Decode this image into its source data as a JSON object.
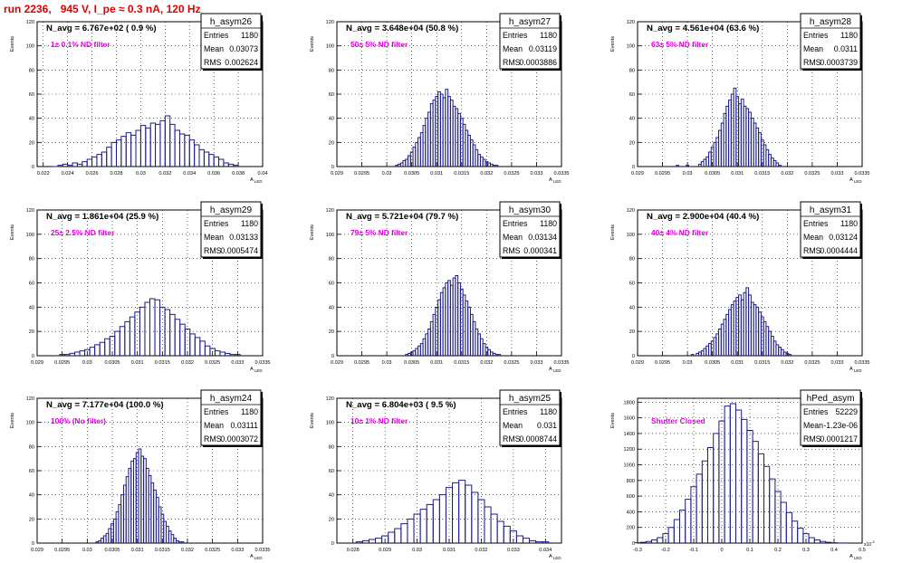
{
  "header": {
    "run_title": "run 2236,   945 V, I_pe ≈ 0.3 nA, 120 Hz"
  },
  "colors": {
    "histogram": "#1a1a8c",
    "annotation": "#e000e0",
    "title_text": "#e00000",
    "frame": "#000000"
  },
  "chart_data": [
    {
      "type": "bar",
      "name": "h_asym26",
      "navg": "N_avg = 6.767e+02 ( 0.9 %)",
      "note": "1± 0.1% ND filter",
      "stats": [
        [
          "Entries",
          "1180"
        ],
        [
          "Mean",
          "0.03073"
        ],
        [
          "RMS",
          "0.002624"
        ]
      ],
      "xlim": [
        0.0215,
        0.04
      ],
      "ylim": [
        0,
        120
      ],
      "xticks": [
        "0.022",
        "0.024",
        "0.026",
        "0.028",
        "0.03",
        "0.032",
        "0.034",
        "0.036",
        "0.038",
        "0.04"
      ],
      "xtick_vals": [
        0.022,
        0.024,
        0.026,
        0.028,
        0.03,
        0.032,
        0.034,
        0.036,
        0.038,
        0.04
      ],
      "yticks": [
        0,
        20,
        40,
        60,
        80,
        100,
        120
      ],
      "xlabel": "A_LED",
      "ylabel": "Events",
      "x": [
        0.023,
        0.0234,
        0.0238,
        0.0242,
        0.0246,
        0.025,
        0.0254,
        0.0258,
        0.0262,
        0.0266,
        0.027,
        0.0274,
        0.0278,
        0.0282,
        0.0286,
        0.029,
        0.0294,
        0.0298,
        0.0302,
        0.0306,
        0.031,
        0.0314,
        0.0318,
        0.0322,
        0.0326,
        0.033,
        0.0334,
        0.0338,
        0.0342,
        0.0346,
        0.035,
        0.0354,
        0.0358,
        0.0362,
        0.0366,
        0.037,
        0.0374,
        0.0378
      ],
      "values": [
        0,
        1,
        2,
        1,
        3,
        2,
        4,
        6,
        8,
        10,
        12,
        16,
        20,
        22,
        25,
        28,
        26,
        30,
        34,
        32,
        36,
        35,
        38,
        42,
        35,
        30,
        27,
        26,
        22,
        18,
        14,
        12,
        10,
        8,
        6,
        3,
        2,
        1
      ]
    },
    {
      "type": "bar",
      "name": "h_asym27",
      "navg": "N_avg = 3.648e+04 (50.8 %)",
      "note": "50± 5% ND filter",
      "stats": [
        [
          "Entries",
          "1180"
        ],
        [
          "Mean",
          "0.03119"
        ],
        [
          "RMS",
          "0.0003886"
        ]
      ],
      "xlim": [
        0.029,
        0.0335
      ],
      "ylim": [
        0,
        120
      ],
      "xticks": [
        "0.029",
        "0.0295",
        "0.03",
        "0.0305",
        "0.031",
        "0.0315",
        "0.032",
        "0.0325",
        "0.033",
        "0.0335"
      ],
      "xtick_vals": [
        0.029,
        0.0295,
        0.03,
        0.0305,
        0.031,
        0.0315,
        0.032,
        0.0325,
        0.033,
        0.0335
      ],
      "yticks": [
        0,
        20,
        40,
        60,
        80,
        100,
        120
      ],
      "xlabel": "A_LED",
      "ylabel": "Events",
      "x": [
        0.0302,
        0.03025,
        0.0303,
        0.03035,
        0.0304,
        0.03045,
        0.0305,
        0.03055,
        0.0306,
        0.03065,
        0.0307,
        0.03075,
        0.0308,
        0.03085,
        0.0309,
        0.03095,
        0.031,
        0.03105,
        0.0311,
        0.03115,
        0.0312,
        0.03125,
        0.0313,
        0.03135,
        0.0314,
        0.03145,
        0.0315,
        0.03155,
        0.0316,
        0.03165,
        0.0317,
        0.03175,
        0.0318,
        0.03185,
        0.0319,
        0.03195,
        0.032,
        0.03205,
        0.0321,
        0.03215,
        0.0322
      ],
      "values": [
        1,
        2,
        3,
        5,
        6,
        9,
        12,
        16,
        20,
        24,
        28,
        34,
        40,
        45,
        52,
        55,
        58,
        62,
        60,
        57,
        64,
        58,
        55,
        50,
        48,
        44,
        40,
        35,
        30,
        26,
        22,
        18,
        14,
        10,
        8,
        6,
        4,
        3,
        2,
        1,
        1
      ]
    },
    {
      "type": "bar",
      "name": "h_asym28",
      "navg": "N_avg = 4.561e+04 (63.6 %)",
      "note": "63± 5% ND filter",
      "stats": [
        [
          "Entries",
          "1180"
        ],
        [
          "Mean",
          "0.0311"
        ],
        [
          "RMS",
          "0.0003739"
        ]
      ],
      "xlim": [
        0.029,
        0.0335
      ],
      "ylim": [
        0,
        120
      ],
      "xticks": [
        "0.029",
        "0.0295",
        "0.03",
        "0.0305",
        "0.031",
        "0.0315",
        "0.032",
        "0.0325",
        "0.033",
        "0.0335"
      ],
      "xtick_vals": [
        0.029,
        0.0295,
        0.03,
        0.0305,
        0.031,
        0.0315,
        0.032,
        0.0325,
        0.033,
        0.0335
      ],
      "yticks": [
        0,
        20,
        40,
        60,
        80,
        100,
        120
      ],
      "xlabel": "A_LED",
      "ylabel": "Events",
      "x": [
        0.0298,
        0.03,
        0.03025,
        0.0303,
        0.03035,
        0.0304,
        0.03045,
        0.0305,
        0.03055,
        0.0306,
        0.03065,
        0.0307,
        0.03075,
        0.0308,
        0.03085,
        0.0309,
        0.03095,
        0.031,
        0.03105,
        0.0311,
        0.03115,
        0.0312,
        0.03125,
        0.0313,
        0.03135,
        0.0314,
        0.03145,
        0.0315,
        0.03155,
        0.0316,
        0.03165,
        0.0317,
        0.03175,
        0.0318,
        0.03185
      ],
      "values": [
        1,
        1,
        2,
        4,
        6,
        8,
        12,
        16,
        20,
        24,
        30,
        36,
        44,
        50,
        55,
        60,
        65,
        58,
        52,
        56,
        50,
        48,
        45,
        40,
        36,
        32,
        28,
        22,
        18,
        14,
        10,
        7,
        5,
        3,
        1
      ]
    },
    {
      "type": "bar",
      "name": "h_asym29",
      "navg": "N_avg = 1.861e+04 (25.9 %)",
      "note": "25± 2.5% ND filter",
      "stats": [
        [
          "Entries",
          "1180"
        ],
        [
          "Mean",
          "0.03133"
        ],
        [
          "RMS",
          "0.0005474"
        ]
      ],
      "xlim": [
        0.029,
        0.0335
      ],
      "ylim": [
        0,
        120
      ],
      "xticks": [
        "0.029",
        "0.0295",
        "0.03",
        "0.0305",
        "0.031",
        "0.0315",
        "0.032",
        "0.0325",
        "0.033",
        "0.0335"
      ],
      "xtick_vals": [
        0.029,
        0.0295,
        0.03,
        0.0305,
        0.031,
        0.0315,
        0.032,
        0.0325,
        0.033,
        0.0335
      ],
      "yticks": [
        0,
        20,
        40,
        60,
        80,
        100,
        120
      ],
      "xlabel": "A_LED",
      "ylabel": "Events",
      "x": [
        0.0295,
        0.0296,
        0.0297,
        0.0298,
        0.0299,
        0.03,
        0.0301,
        0.0302,
        0.0303,
        0.0304,
        0.0305,
        0.0306,
        0.0307,
        0.0308,
        0.0309,
        0.031,
        0.0311,
        0.0312,
        0.0313,
        0.0314,
        0.0315,
        0.0316,
        0.0317,
        0.0318,
        0.0319,
        0.032,
        0.0321,
        0.0322,
        0.0323,
        0.0324,
        0.0325,
        0.0326,
        0.0327,
        0.0328,
        0.0329,
        0.033
      ],
      "values": [
        1,
        1,
        2,
        3,
        4,
        5,
        7,
        9,
        11,
        14,
        16,
        20,
        24,
        28,
        32,
        36,
        40,
        44,
        47,
        46,
        40,
        38,
        34,
        30,
        26,
        22,
        18,
        15,
        12,
        8,
        6,
        4,
        3,
        2,
        1,
        1
      ]
    },
    {
      "type": "bar",
      "name": "h_asym30",
      "navg": "N_avg = 5.721e+04 (79.7 %)",
      "note": "79± 5% ND filter",
      "stats": [
        [
          "Entries",
          "1180"
        ],
        [
          "Mean",
          "0.03134"
        ],
        [
          "RMS",
          "0.000341"
        ]
      ],
      "xlim": [
        0.029,
        0.0335
      ],
      "ylim": [
        0,
        120
      ],
      "xticks": [
        "0.029",
        "0.0295",
        "0.03",
        "0.0305",
        "0.031",
        "0.0315",
        "0.032",
        "0.0325",
        "0.033",
        "0.0335"
      ],
      "xtick_vals": [
        0.029,
        0.0295,
        0.03,
        0.0305,
        0.031,
        0.0315,
        0.032,
        0.0325,
        0.033,
        0.0335
      ],
      "yticks": [
        0,
        20,
        40,
        60,
        80,
        100,
        120
      ],
      "xlabel": "A_LED",
      "ylabel": "Events",
      "x": [
        0.0304,
        0.03045,
        0.0305,
        0.03055,
        0.0306,
        0.03065,
        0.0307,
        0.03075,
        0.0308,
        0.03085,
        0.0309,
        0.03095,
        0.031,
        0.03105,
        0.0311,
        0.03115,
        0.0312,
        0.03125,
        0.0313,
        0.03135,
        0.0314,
        0.03145,
        0.0315,
        0.03155,
        0.0316,
        0.03165,
        0.0317,
        0.03175,
        0.0318,
        0.03185,
        0.0319,
        0.03195,
        0.032,
        0.03205,
        0.0321,
        0.03215,
        0.0322,
        0.03225
      ],
      "values": [
        1,
        2,
        3,
        4,
        6,
        8,
        10,
        14,
        18,
        22,
        28,
        34,
        40,
        46,
        52,
        56,
        60,
        62,
        58,
        64,
        66,
        60,
        55,
        50,
        45,
        40,
        34,
        28,
        22,
        18,
        14,
        10,
        7,
        5,
        3,
        2,
        1,
        1
      ]
    },
    {
      "type": "bar",
      "name": "h_asym31",
      "navg": "N_avg = 2.900e+04 (40.4 %)",
      "note": "40± 4% ND filter",
      "stats": [
        [
          "Entries",
          "1180"
        ],
        [
          "Mean",
          "0.03124"
        ],
        [
          "RMS",
          "0.0004444"
        ]
      ],
      "xlim": [
        0.029,
        0.0335
      ],
      "ylim": [
        0,
        120
      ],
      "xticks": [
        "0.029",
        "0.0295",
        "0.03",
        "0.0305",
        "0.031",
        "0.0315",
        "0.032",
        "0.0325",
        "0.033",
        "0.0335"
      ],
      "xtick_vals": [
        0.029,
        0.0295,
        0.03,
        0.0305,
        0.031,
        0.0315,
        0.032,
        0.0325,
        0.033,
        0.0335
      ],
      "yticks": [
        0,
        20,
        40,
        60,
        80,
        100,
        120
      ],
      "xlabel": "A_LED",
      "ylabel": "Events",
      "x": [
        0.0301,
        0.0302,
        0.03025,
        0.0303,
        0.03035,
        0.0304,
        0.03045,
        0.0305,
        0.03055,
        0.0306,
        0.03065,
        0.0307,
        0.03075,
        0.0308,
        0.03085,
        0.0309,
        0.03095,
        0.031,
        0.03105,
        0.0311,
        0.03115,
        0.0312,
        0.03125,
        0.0313,
        0.03135,
        0.0314,
        0.03145,
        0.0315,
        0.03155,
        0.0316,
        0.03165,
        0.0317,
        0.03175,
        0.0318,
        0.03185,
        0.0319,
        0.03195,
        0.032,
        0.03205
      ],
      "values": [
        1,
        2,
        3,
        4,
        6,
        8,
        10,
        12,
        15,
        18,
        22,
        26,
        30,
        34,
        38,
        42,
        45,
        48,
        50,
        46,
        52,
        56,
        50,
        44,
        42,
        40,
        36,
        32,
        28,
        24,
        20,
        16,
        12,
        9,
        7,
        5,
        3,
        2,
        1
      ]
    },
    {
      "type": "bar",
      "name": "h_asym24",
      "navg": "N_avg = 7.177e+04 (100.0 %)",
      "note": "100% (No filter)",
      "stats": [
        [
          "Entries",
          "1180"
        ],
        [
          "Mean",
          "0.03111"
        ],
        [
          "RMS",
          "0.0003072"
        ]
      ],
      "xlim": [
        0.029,
        0.0335
      ],
      "ylim": [
        0,
        120
      ],
      "xticks": [
        "0.029",
        "0.0295",
        "0.03",
        "0.0305",
        "0.031",
        "0.0315",
        "0.032",
        "0.0325",
        "0.033",
        "0.0335"
      ],
      "xtick_vals": [
        0.029,
        0.0295,
        0.03,
        0.0305,
        0.031,
        0.0315,
        0.032,
        0.0325,
        0.033,
        0.0335
      ],
      "yticks": [
        0,
        20,
        40,
        60,
        80,
        100,
        120
      ],
      "xlabel": "A_LED",
      "ylabel": "Events",
      "x": [
        0.0302,
        0.03025,
        0.0303,
        0.03035,
        0.0304,
        0.03045,
        0.0305,
        0.03055,
        0.0306,
        0.03065,
        0.0307,
        0.03075,
        0.0308,
        0.03085,
        0.0309,
        0.03095,
        0.031,
        0.03105,
        0.0311,
        0.03115,
        0.0312,
        0.03125,
        0.0313,
        0.03135,
        0.0314,
        0.03145,
        0.0315,
        0.03155,
        0.0316,
        0.03165,
        0.0317,
        0.03175,
        0.0318,
        0.03185,
        0.0319
      ],
      "values": [
        1,
        2,
        4,
        6,
        8,
        12,
        16,
        20,
        26,
        32,
        40,
        48,
        55,
        62,
        68,
        70,
        75,
        78,
        72,
        70,
        62,
        56,
        50,
        44,
        38,
        30,
        24,
        18,
        14,
        10,
        7,
        4,
        2,
        1,
        1
      ]
    },
    {
      "type": "bar",
      "name": "h_asym25",
      "navg": "N_avg = 6.804e+03 ( 9.5 %)",
      "note": "10± 1% ND filter",
      "stats": [
        [
          "Entries",
          "1180"
        ],
        [
          "Mean",
          "0.031"
        ],
        [
          "RMS",
          "0.0008744"
        ]
      ],
      "xlim": [
        0.0275,
        0.0345
      ],
      "ylim": [
        0,
        120
      ],
      "xticks": [
        "0.028",
        "0.029",
        "0.03",
        "0.031",
        "0.032",
        "0.033",
        "0.034"
      ],
      "xtick_vals": [
        0.028,
        0.029,
        0.03,
        0.031,
        0.032,
        0.033,
        0.034
      ],
      "yticks": [
        0,
        20,
        40,
        60,
        80,
        100,
        120
      ],
      "xlabel": "A_LED",
      "ylabel": "Events",
      "x": [
        0.0282,
        0.0284,
        0.0286,
        0.0288,
        0.029,
        0.0292,
        0.0294,
        0.0296,
        0.0298,
        0.03,
        0.0302,
        0.0304,
        0.0306,
        0.0308,
        0.031,
        0.0312,
        0.0314,
        0.0316,
        0.0318,
        0.032,
        0.0322,
        0.0324,
        0.0326,
        0.0328,
        0.033,
        0.0332,
        0.0334,
        0.0336,
        0.0338,
        0.034
      ],
      "values": [
        1,
        2,
        3,
        4,
        6,
        9,
        12,
        16,
        20,
        24,
        28,
        32,
        36,
        40,
        46,
        50,
        52,
        48,
        42,
        36,
        30,
        24,
        18,
        14,
        10,
        6,
        4,
        2,
        1,
        1
      ]
    },
    {
      "type": "bar",
      "name": "hPed_asym",
      "navg": "",
      "note": "Shutter Closed",
      "stats": [
        [
          "Entries",
          "52229"
        ],
        [
          "Mean",
          "-1.23e-06"
        ],
        [
          "RMS",
          "0.0001217"
        ]
      ],
      "xlim": [
        -0.3,
        0.5
      ],
      "ylim": [
        0,
        1850
      ],
      "xticks": [
        "-0.3",
        "-0.2",
        "-0.1",
        "0",
        "0.1",
        "0.2",
        "0.3",
        "0.4",
        "0.5"
      ],
      "xtick_vals": [
        -0.3,
        -0.2,
        -0.1,
        0,
        0.1,
        0.2,
        0.3,
        0.4,
        0.5
      ],
      "yticks": [
        0,
        200,
        400,
        600,
        800,
        1000,
        1200,
        1400,
        1600,
        1800
      ],
      "xlabel": "A_LED",
      "ylabel": "Events",
      "axis_exponent": "x10^-3",
      "x": [
        -0.3,
        -0.28,
        -0.26,
        -0.24,
        -0.22,
        -0.2,
        -0.18,
        -0.16,
        -0.14,
        -0.12,
        -0.1,
        -0.08,
        -0.06,
        -0.04,
        -0.02,
        0,
        0.02,
        0.04,
        0.06,
        0.08,
        0.1,
        0.12,
        0.14,
        0.16,
        0.18,
        0.2,
        0.22,
        0.24,
        0.26,
        0.28,
        0.3,
        0.32,
        0.34,
        0.36,
        0.38,
        0.4,
        0.42,
        0.44
      ],
      "values": [
        5,
        10,
        20,
        40,
        70,
        120,
        200,
        300,
        420,
        560,
        720,
        880,
        1050,
        1220,
        1400,
        1560,
        1750,
        1780,
        1700,
        1580,
        1440,
        1300,
        1140,
        980,
        820,
        660,
        520,
        390,
        280,
        190,
        120,
        70,
        40,
        20,
        10,
        5,
        2,
        1
      ]
    }
  ]
}
